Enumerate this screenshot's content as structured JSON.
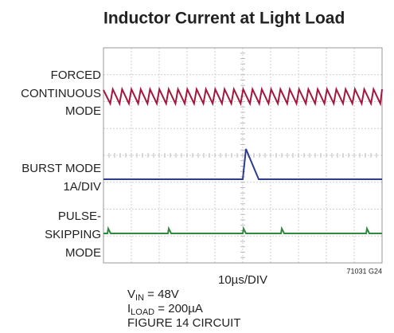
{
  "title": "Inductor Current at Light Load",
  "traces": [
    {
      "label": [
        "FORCED",
        "CONTINUOUS",
        "MODE"
      ]
    },
    {
      "label": [
        "BURST MODE",
        "1A/DIV"
      ]
    },
    {
      "label": [
        "PULSE-",
        "SKIPPING",
        "MODE"
      ]
    }
  ],
  "code": "71031 G24",
  "time_scale": "10µs/DIV",
  "notes": [
    {
      "main": "V",
      "sub": "IN",
      "rest": " = 48V"
    },
    {
      "main": "I",
      "sub": "LOAD",
      "rest": " = 200µA"
    },
    {
      "main": "FIGURE 14 CIRCUIT"
    }
  ]
}
